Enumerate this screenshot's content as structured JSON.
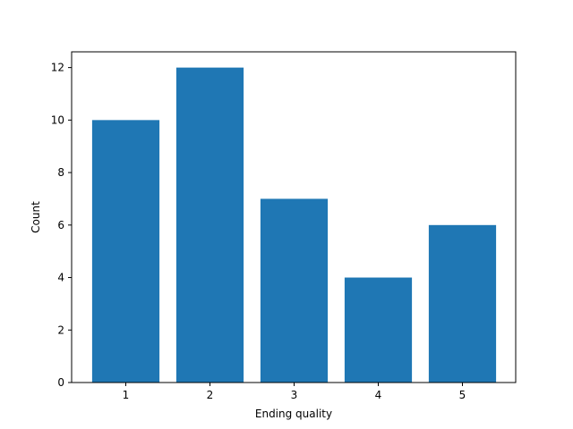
{
  "chart_data": {
    "type": "bar",
    "title": "",
    "xlabel": "Ending quality",
    "ylabel": "Count",
    "categories": [
      "1",
      "2",
      "3",
      "4",
      "5"
    ],
    "values": [
      10,
      12,
      7,
      4,
      6
    ],
    "ylim": [
      0,
      12.6
    ],
    "yticks": [
      "0",
      "2",
      "4",
      "6",
      "8",
      "10",
      "12"
    ],
    "bar_color": "#1f77b4",
    "grid": false,
    "legend": "none"
  }
}
